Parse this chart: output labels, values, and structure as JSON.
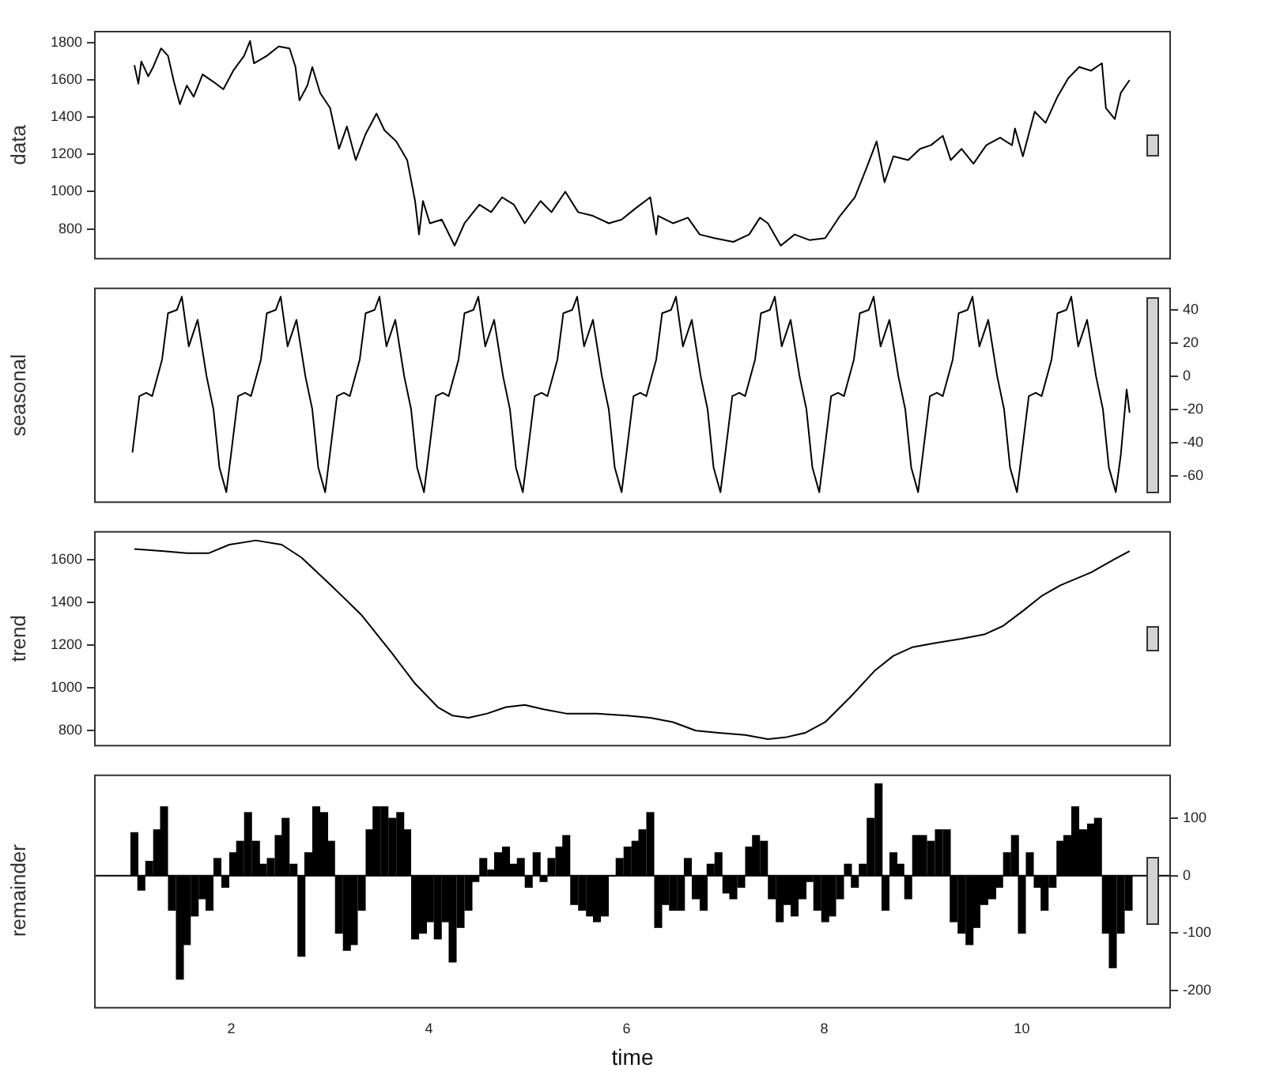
{
  "chart_data": [
    {
      "type": "line",
      "ylabel": "data",
      "xlim": [
        0.62,
        11.5
      ],
      "xticks": [
        2,
        4,
        6,
        8,
        10
      ],
      "ylim": [
        640,
        1860
      ],
      "yticks": [
        800,
        1000,
        1200,
        1400,
        1600,
        1800
      ],
      "tick_labels": "y",
      "series": [
        {
          "color": "#000000",
          "x": [
            1.02,
            1.06,
            1.09,
            1.16,
            1.21,
            1.29,
            1.36,
            1.42,
            1.48,
            1.55,
            1.62,
            1.71,
            1.82,
            1.92,
            2.02,
            2.13,
            2.19,
            2.23,
            2.36,
            2.48,
            2.59,
            2.65,
            2.69,
            2.77,
            2.82,
            2.9,
            3.0,
            3.09,
            3.17,
            3.26,
            3.36,
            3.47,
            3.55,
            3.67,
            3.78,
            3.86,
            3.9,
            3.94,
            4.01,
            4.13,
            4.26,
            4.36,
            4.51,
            4.63,
            4.74,
            4.86,
            4.97,
            5.13,
            5.24,
            5.38,
            5.51,
            5.66,
            5.82,
            5.95,
            6.09,
            6.24,
            6.3,
            6.32,
            6.47,
            6.62,
            6.74,
            6.89,
            7.08,
            7.24,
            7.35,
            7.43,
            7.56,
            7.7,
            7.85,
            8.01,
            8.16,
            8.31,
            8.43,
            8.53,
            8.61,
            8.7,
            8.85,
            8.97,
            9.08,
            9.2,
            9.28,
            9.39,
            9.51,
            9.64,
            9.78,
            9.9,
            9.93,
            10.01,
            10.13,
            10.24,
            10.36,
            10.47,
            10.58,
            10.7,
            10.81,
            10.85,
            10.94,
            11.0,
            11.09
          ],
          "values": [
            1680,
            1580,
            1700,
            1620,
            1670,
            1770,
            1730,
            1590,
            1470,
            1570,
            1510,
            1630,
            1590,
            1550,
            1650,
            1730,
            1810,
            1690,
            1730,
            1780,
            1770,
            1670,
            1490,
            1570,
            1670,
            1530,
            1450,
            1230,
            1350,
            1170,
            1310,
            1420,
            1330,
            1270,
            1170,
            950,
            770,
            950,
            830,
            850,
            710,
            830,
            930,
            890,
            970,
            930,
            830,
            950,
            890,
            1000,
            890,
            870,
            830,
            850,
            910,
            970,
            770,
            870,
            830,
            860,
            770,
            750,
            730,
            770,
            860,
            830,
            710,
            770,
            740,
            750,
            870,
            970,
            1130,
            1270,
            1050,
            1190,
            1170,
            1230,
            1250,
            1300,
            1170,
            1230,
            1150,
            1250,
            1290,
            1250,
            1340,
            1190,
            1430,
            1370,
            1510,
            1610,
            1670,
            1650,
            1690,
            1450,
            1390,
            1530,
            1600
          ]
        }
      ]
    },
    {
      "type": "line",
      "ylabel": "seasonal",
      "xlim": [
        0.62,
        11.5
      ],
      "xticks": [
        2,
        4,
        6,
        8,
        10
      ],
      "ylim": [
        -76,
        53
      ],
      "yticks": [
        -60,
        -40,
        -20,
        0,
        20,
        40
      ],
      "tick_labels": "y",
      "series": [
        {
          "color": "#000000",
          "x": [
            1,
            1.07,
            1.14,
            1.2,
            1.3,
            1.36,
            1.45,
            1.5,
            1.57,
            1.66,
            1.75,
            1.82,
            1.88,
            1.95,
            2,
            2.07,
            2.14,
            2.2,
            2.3,
            2.36,
            2.45,
            2.5,
            2.57,
            2.66,
            2.75,
            2.82,
            2.88,
            2.95,
            3,
            3.07,
            3.14,
            3.2,
            3.3,
            3.36,
            3.45,
            3.5,
            3.57,
            3.66,
            3.75,
            3.82,
            3.88,
            3.95,
            4,
            4.07,
            4.14,
            4.2,
            4.3,
            4.36,
            4.45,
            4.5,
            4.57,
            4.66,
            4.75,
            4.82,
            4.88,
            4.95,
            5,
            5.07,
            5.14,
            5.2,
            5.3,
            5.36,
            5.45,
            5.5,
            5.57,
            5.66,
            5.75,
            5.82,
            5.88,
            5.95,
            6,
            6.07,
            6.14,
            6.2,
            6.3,
            6.36,
            6.45,
            6.5,
            6.57,
            6.66,
            6.75,
            6.82,
            6.88,
            6.95,
            7,
            7.07,
            7.14,
            7.2,
            7.3,
            7.36,
            7.45,
            7.5,
            7.57,
            7.66,
            7.75,
            7.82,
            7.88,
            7.95,
            8,
            8.07,
            8.14,
            8.2,
            8.3,
            8.36,
            8.45,
            8.5,
            8.57,
            8.66,
            8.75,
            8.82,
            8.88,
            8.95,
            9,
            9.07,
            9.14,
            9.2,
            9.3,
            9.36,
            9.45,
            9.5,
            9.57,
            9.66,
            9.75,
            9.82,
            9.88,
            9.95,
            10,
            10.07,
            10.14,
            10.2,
            10.3,
            10.36,
            10.45,
            10.5,
            10.57,
            10.66,
            10.75,
            10.82,
            10.88,
            10.95,
            11,
            11.06,
            11.09
          ],
          "values": [
            -46,
            -12,
            -10,
            -12,
            10,
            38,
            40,
            48,
            18,
            34,
            0,
            -20,
            -55,
            -70,
            -46,
            -12,
            -10,
            -12,
            10,
            38,
            40,
            48,
            18,
            34,
            0,
            -20,
            -55,
            -70,
            -46,
            -12,
            -10,
            -12,
            10,
            38,
            40,
            48,
            18,
            34,
            0,
            -20,
            -55,
            -70,
            -46,
            -12,
            -10,
            -12,
            10,
            38,
            40,
            48,
            18,
            34,
            0,
            -20,
            -55,
            -70,
            -46,
            -12,
            -10,
            -12,
            10,
            38,
            40,
            48,
            18,
            34,
            0,
            -20,
            -55,
            -70,
            -46,
            -12,
            -10,
            -12,
            10,
            38,
            40,
            48,
            18,
            34,
            0,
            -20,
            -55,
            -70,
            -46,
            -12,
            -10,
            -12,
            10,
            38,
            40,
            48,
            18,
            34,
            0,
            -20,
            -55,
            -70,
            -46,
            -12,
            -10,
            -12,
            10,
            38,
            40,
            48,
            18,
            34,
            0,
            -20,
            -55,
            -70,
            -46,
            -12,
            -10,
            -12,
            10,
            38,
            40,
            48,
            18,
            34,
            0,
            -20,
            -55,
            -70,
            -46,
            -12,
            -10,
            -12,
            10,
            38,
            40,
            48,
            18,
            34,
            0,
            -20,
            -55,
            -70,
            -48,
            -8,
            -22
          ]
        }
      ]
    },
    {
      "type": "line",
      "ylabel": "trend",
      "xlim": [
        0.62,
        11.5
      ],
      "xticks": [
        2,
        4,
        6,
        8,
        10
      ],
      "ylim": [
        730,
        1730
      ],
      "yticks": [
        800,
        1000,
        1200,
        1400,
        1600
      ],
      "tick_labels": "y",
      "series": [
        {
          "color": "#000000",
          "x": [
            1.02,
            1.32,
            1.55,
            1.77,
            1.98,
            2.25,
            2.51,
            2.71,
            3.01,
            3.32,
            3.63,
            3.86,
            4.09,
            4.24,
            4.4,
            4.59,
            4.78,
            4.97,
            5.16,
            5.39,
            5.7,
            6.01,
            6.24,
            6.47,
            6.7,
            6.93,
            7.2,
            7.43,
            7.62,
            7.81,
            8.01,
            8.27,
            8.51,
            8.7,
            8.89,
            9.12,
            9.39,
            9.62,
            9.81,
            10.01,
            10.2,
            10.39,
            10.7,
            10.93,
            11.09
          ],
          "values": [
            1650,
            1640,
            1630,
            1630,
            1670,
            1690,
            1670,
            1610,
            1480,
            1340,
            1160,
            1020,
            910,
            870,
            860,
            880,
            910,
            920,
            900,
            880,
            880,
            870,
            860,
            840,
            800,
            790,
            780,
            760,
            770,
            790,
            840,
            960,
            1080,
            1150,
            1190,
            1210,
            1230,
            1250,
            1290,
            1360,
            1430,
            1480,
            1540,
            1600,
            1640
          ]
        }
      ]
    },
    {
      "type": "bar",
      "ylabel": "remainder",
      "xlabel": "time",
      "xlim": [
        0.62,
        11.5
      ],
      "xticks": [
        2,
        4,
        6,
        8,
        10
      ],
      "ylim": [
        -230,
        175
      ],
      "yticks": [
        -200,
        -100,
        0,
        100
      ],
      "ref_lines": [
        {
          "axis": "y",
          "value": 0
        }
      ],
      "series": [
        {
          "color": "#000000",
          "x": [
            1.02,
            1.09,
            1.17,
            1.25,
            1.32,
            1.4,
            1.48,
            1.55,
            1.63,
            1.71,
            1.78,
            1.86,
            1.94,
            2.02,
            2.09,
            2.17,
            2.25,
            2.32,
            2.4,
            2.48,
            2.55,
            2.63,
            2.71,
            2.78,
            2.86,
            2.94,
            3.01,
            3.09,
            3.17,
            3.24,
            3.32,
            3.4,
            3.47,
            3.55,
            3.63,
            3.71,
            3.78,
            3.86,
            3.94,
            4.01,
            4.09,
            4.17,
            4.24,
            4.32,
            4.4,
            4.47,
            4.55,
            4.63,
            4.7,
            4.78,
            4.86,
            4.93,
            5.01,
            5.09,
            5.16,
            5.24,
            5.32,
            5.39,
            5.47,
            5.55,
            5.63,
            5.7,
            5.78,
            5.86,
            5.93,
            6.01,
            6.09,
            6.16,
            6.24,
            6.32,
            6.39,
            6.47,
            6.55,
            6.62,
            6.7,
            6.78,
            6.85,
            6.93,
            7.01,
            7.08,
            7.16,
            7.24,
            7.31,
            7.39,
            7.47,
            7.55,
            7.62,
            7.7,
            7.78,
            7.85,
            7.93,
            8.01,
            8.08,
            8.16,
            8.24,
            8.31,
            8.39,
            8.47,
            8.55,
            8.62,
            8.7,
            8.77,
            8.85,
            8.93,
            9.0,
            9.08,
            9.16,
            9.24,
            9.31,
            9.39,
            9.47,
            9.54,
            9.62,
            9.7,
            9.77,
            9.85,
            9.93,
            10.0,
            10.08,
            10.16,
            10.23,
            10.31,
            10.39,
            10.46,
            10.54,
            10.62,
            10.7,
            10.77,
            10.85,
            10.92,
            11.0,
            11.08
          ],
          "values": [
            75,
            -25,
            25,
            80,
            120,
            -60,
            -180,
            -120,
            -70,
            -40,
            -60,
            30,
            -20,
            40,
            60,
            110,
            60,
            20,
            30,
            70,
            100,
            20,
            -140,
            40,
            120,
            110,
            60,
            -100,
            -130,
            -120,
            -60,
            80,
            120,
            120,
            100,
            110,
            80,
            -110,
            -100,
            -80,
            -110,
            -80,
            -150,
            -90,
            -60,
            -10,
            30,
            10,
            40,
            50,
            20,
            30,
            -20,
            40,
            -10,
            30,
            50,
            70,
            -50,
            -60,
            -70,
            -80,
            -70,
            0,
            30,
            50,
            60,
            80,
            110,
            -90,
            -50,
            -60,
            -60,
            30,
            -40,
            -60,
            20,
            40,
            -30,
            -40,
            -20,
            50,
            70,
            60,
            -40,
            -80,
            -50,
            -70,
            -40,
            -10,
            -60,
            -80,
            -70,
            -40,
            20,
            -20,
            20,
            100,
            160,
            -60,
            40,
            20,
            -40,
            70,
            70,
            60,
            80,
            80,
            -80,
            -100,
            -120,
            -90,
            -50,
            -40,
            -20,
            40,
            70,
            -100,
            40,
            -20,
            -60,
            -20,
            60,
            70,
            120,
            80,
            90,
            100,
            -100,
            -160,
            -100,
            -60
          ]
        }
      ]
    }
  ]
}
